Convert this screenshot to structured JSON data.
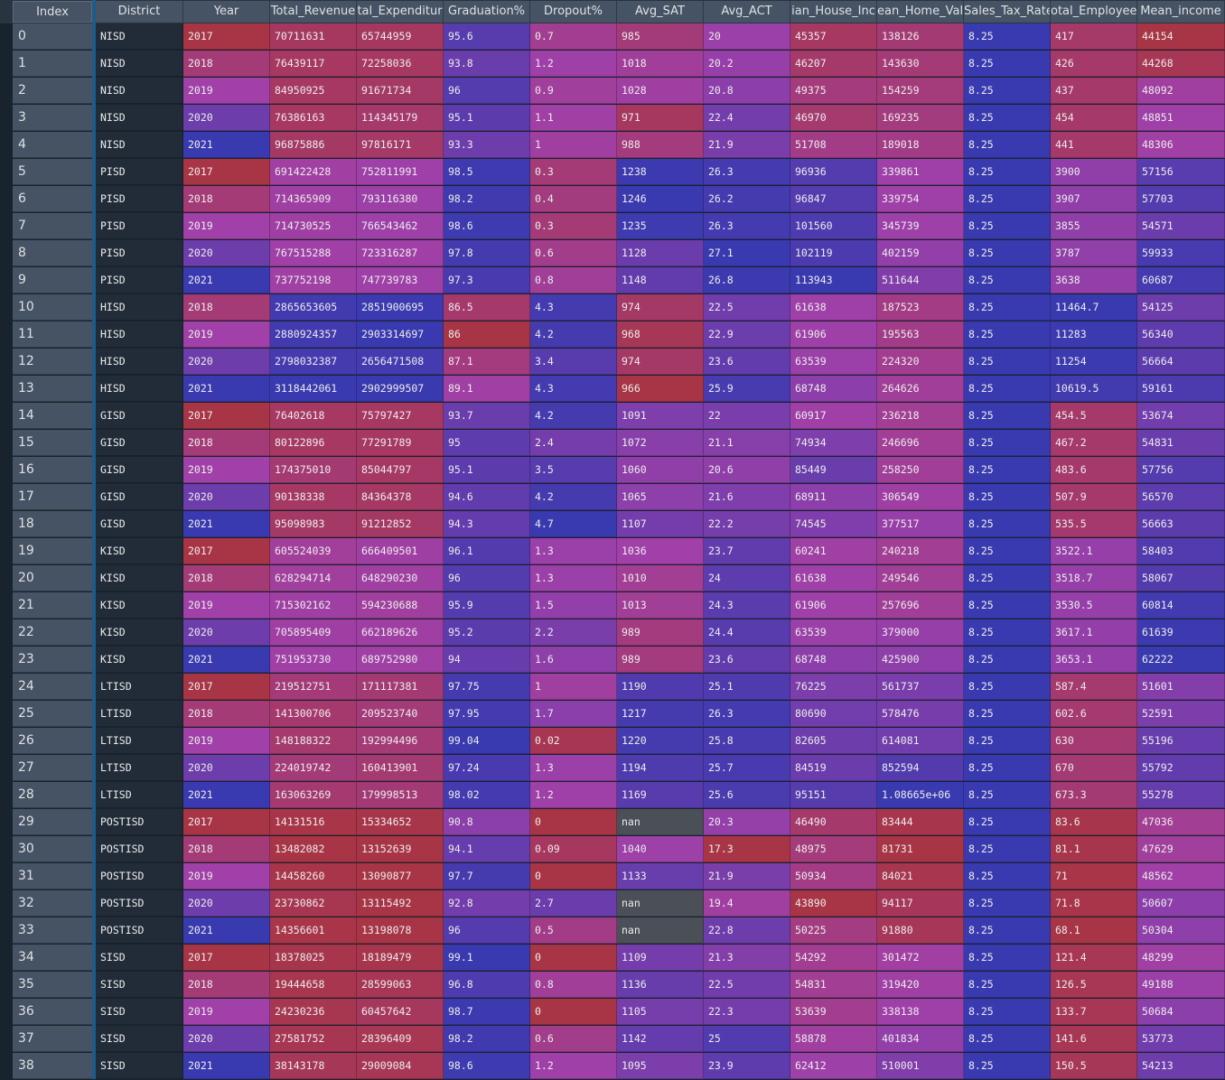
{
  "columns": [
    "District",
    "Year",
    "Total_Revenue",
    "tal_Expenditur",
    "Graduation%",
    "Dropout%",
    "Avg_SAT",
    "Avg_ACT",
    "ian_House_Inc",
    "ean_Home_Val",
    "Sales_Tax_Rate",
    "otal_Employee",
    "Mean_income"
  ],
  "index_header": "Index",
  "rows": [
    [
      "NISD",
      "2017",
      "70711631",
      "65744959",
      "95.6",
      "0.7",
      "985",
      "20",
      "45357",
      "138126",
      "8.25",
      "417",
      "44154"
    ],
    [
      "NISD",
      "2018",
      "76439117",
      "72258036",
      "93.8",
      "1.2",
      "1018",
      "20.2",
      "46207",
      "143630",
      "8.25",
      "426",
      "44268"
    ],
    [
      "NISD",
      "2019",
      "84950925",
      "91671734",
      "96",
      "0.9",
      "1028",
      "20.8",
      "49375",
      "154259",
      "8.25",
      "437",
      "48092"
    ],
    [
      "NISD",
      "2020",
      "76386163",
      "114345179",
      "95.1",
      "1.1",
      "971",
      "22.4",
      "46970",
      "169235",
      "8.25",
      "454",
      "48851"
    ],
    [
      "NISD",
      "2021",
      "96875886",
      "97816171",
      "93.3",
      "1",
      "988",
      "21.9",
      "51708",
      "189018",
      "8.25",
      "441",
      "48306"
    ],
    [
      "PISD",
      "2017",
      "691422428",
      "752811991",
      "98.5",
      "0.3",
      "1238",
      "26.3",
      "96936",
      "339861",
      "8.25",
      "3900",
      "57156"
    ],
    [
      "PISD",
      "2018",
      "714365909",
      "793116380",
      "98.2",
      "0.4",
      "1246",
      "26.2",
      "96847",
      "339754",
      "8.25",
      "3907",
      "57703"
    ],
    [
      "PISD",
      "2019",
      "714730525",
      "766543462",
      "98.6",
      "0.3",
      "1235",
      "26.3",
      "101560",
      "345739",
      "8.25",
      "3855",
      "54571"
    ],
    [
      "PISD",
      "2020",
      "767515288",
      "723316287",
      "97.8",
      "0.6",
      "1128",
      "27.1",
      "102119",
      "402159",
      "8.25",
      "3787",
      "59933"
    ],
    [
      "PISD",
      "2021",
      "737752198",
      "747739783",
      "97.3",
      "0.8",
      "1148",
      "26.8",
      "113943",
      "511644",
      "8.25",
      "3638",
      "60687"
    ],
    [
      "HISD",
      "2018",
      "2865653605",
      "2851900695",
      "86.5",
      "4.3",
      "974",
      "22.5",
      "61638",
      "187523",
      "8.25",
      "11464.7",
      "54125"
    ],
    [
      "HISD",
      "2019",
      "2880924357",
      "2903314697",
      "86",
      "4.2",
      "968",
      "22.9",
      "61906",
      "195563",
      "8.25",
      "11283",
      "56340"
    ],
    [
      "HISD",
      "2020",
      "2798032387",
      "2656471508",
      "87.1",
      "3.4",
      "974",
      "23.6",
      "63539",
      "224320",
      "8.25",
      "11254",
      "56664"
    ],
    [
      "HISD",
      "2021",
      "3118442061",
      "2902999507",
      "89.1",
      "4.3",
      "966",
      "25.9",
      "68748",
      "264626",
      "8.25",
      "10619.5",
      "59161"
    ],
    [
      "GISD",
      "2017",
      "76402618",
      "75797427",
      "93.7",
      "4.2",
      "1091",
      "22",
      "60917",
      "236218",
      "8.25",
      "454.5",
      "53674"
    ],
    [
      "GISD",
      "2018",
      "80122896",
      "77291789",
      "95",
      "2.4",
      "1072",
      "21.1",
      "74934",
      "246696",
      "8.25",
      "467.2",
      "54831"
    ],
    [
      "GISD",
      "2019",
      "174375010",
      "85044797",
      "95.1",
      "3.5",
      "1060",
      "20.6",
      "85449",
      "258250",
      "8.25",
      "483.6",
      "57756"
    ],
    [
      "GISD",
      "2020",
      "90138338",
      "84364378",
      "94.6",
      "4.2",
      "1065",
      "21.6",
      "68911",
      "306549",
      "8.25",
      "507.9",
      "56570"
    ],
    [
      "GISD",
      "2021",
      "95098983",
      "91212852",
      "94.3",
      "4.7",
      "1107",
      "22.2",
      "74545",
      "377517",
      "8.25",
      "535.5",
      "56663"
    ],
    [
      "KISD",
      "2017",
      "605524039",
      "666409501",
      "96.1",
      "1.3",
      "1036",
      "23.7",
      "60241",
      "240218",
      "8.25",
      "3522.1",
      "58403"
    ],
    [
      "KISD",
      "2018",
      "628294714",
      "648290230",
      "96",
      "1.3",
      "1010",
      "24",
      "61638",
      "249546",
      "8.25",
      "3518.7",
      "58067"
    ],
    [
      "KISD",
      "2019",
      "715302162",
      "594230688",
      "95.9",
      "1.5",
      "1013",
      "24.3",
      "61906",
      "257696",
      "8.25",
      "3530.5",
      "60814"
    ],
    [
      "KISD",
      "2020",
      "705895409",
      "662189626",
      "95.2",
      "2.2",
      "989",
      "24.4",
      "63539",
      "379000",
      "8.25",
      "3617.1",
      "61639"
    ],
    [
      "KISD",
      "2021",
      "751953730",
      "689752980",
      "94",
      "1.6",
      "989",
      "23.6",
      "68748",
      "425900",
      "8.25",
      "3653.1",
      "62222"
    ],
    [
      "LTISD",
      "2017",
      "219512751",
      "171117381",
      "97.75",
      "1",
      "1190",
      "25.1",
      "76225",
      "561737",
      "8.25",
      "587.4",
      "51601"
    ],
    [
      "LTISD",
      "2018",
      "141300706",
      "209523740",
      "97.95",
      "1.7",
      "1217",
      "26.3",
      "80690",
      "578476",
      "8.25",
      "602.6",
      "52591"
    ],
    [
      "LTISD",
      "2019",
      "148188322",
      "192994496",
      "99.04",
      "0.02",
      "1220",
      "25.8",
      "82605",
      "614081",
      "8.25",
      "630",
      "55196"
    ],
    [
      "LTISD",
      "2020",
      "224019742",
      "160413901",
      "97.24",
      "1.3",
      "1194",
      "25.7",
      "84519",
      "852594",
      "8.25",
      "670",
      "55792"
    ],
    [
      "LTISD",
      "2021",
      "163063269",
      "179998513",
      "98.02",
      "1.2",
      "1169",
      "25.6",
      "95151",
      "1.08665e+06",
      "8.25",
      "673.3",
      "55278"
    ],
    [
      "POSTISD",
      "2017",
      "14131516",
      "15334652",
      "90.8",
      "0",
      "nan",
      "20.3",
      "46490",
      "83444",
      "8.25",
      "83.6",
      "47036"
    ],
    [
      "POSTISD",
      "2018",
      "13482082",
      "13152639",
      "94.1",
      "0.09",
      "1040",
      "17.3",
      "48975",
      "81731",
      "8.25",
      "81.1",
      "47629"
    ],
    [
      "POSTISD",
      "2019",
      "14458260",
      "13090877",
      "97.7",
      "0",
      "1133",
      "21.9",
      "50934",
      "84021",
      "8.25",
      "71",
      "48562"
    ],
    [
      "POSTISD",
      "2020",
      "23730862",
      "13115492",
      "92.8",
      "2.7",
      "nan",
      "19.4",
      "43890",
      "94117",
      "8.25",
      "71.8",
      "50607"
    ],
    [
      "POSTISD",
      "2021",
      "14356601",
      "13198078",
      "96",
      "0.5",
      "nan",
      "22.8",
      "50225",
      "91880",
      "8.25",
      "68.1",
      "50304"
    ],
    [
      "SISD",
      "2017",
      "18378025",
      "18189479",
      "99.1",
      "0",
      "1109",
      "21.3",
      "54292",
      "301472",
      "8.25",
      "121.4",
      "48299"
    ],
    [
      "SISD",
      "2018",
      "19444658",
      "28599063",
      "96.8",
      "0.8",
      "1136",
      "22.5",
      "54831",
      "319420",
      "8.25",
      "126.5",
      "49188"
    ],
    [
      "SISD",
      "2019",
      "24230236",
      "60457642",
      "98.7",
      "0",
      "1105",
      "22.3",
      "53639",
      "338138",
      "8.25",
      "133.7",
      "50684"
    ],
    [
      "SISD",
      "2020",
      "27581752",
      "28396409",
      "98.2",
      "0.6",
      "1142",
      "25",
      "58878",
      "401834",
      "8.25",
      "141.6",
      "53773"
    ],
    [
      "SISD",
      "2021",
      "38143178",
      "29009084",
      "98.6",
      "1.2",
      "1095",
      "23.9",
      "62412",
      "510001",
      "8.25",
      "150.5",
      "54213"
    ]
  ],
  "colors": {
    "low": "#a83545",
    "mid": "#a040a8",
    "high": "#3a3ab0",
    "header_bg": "#455364",
    "nan_bg": "#4b5058",
    "text_column_bg": "#212c38"
  }
}
